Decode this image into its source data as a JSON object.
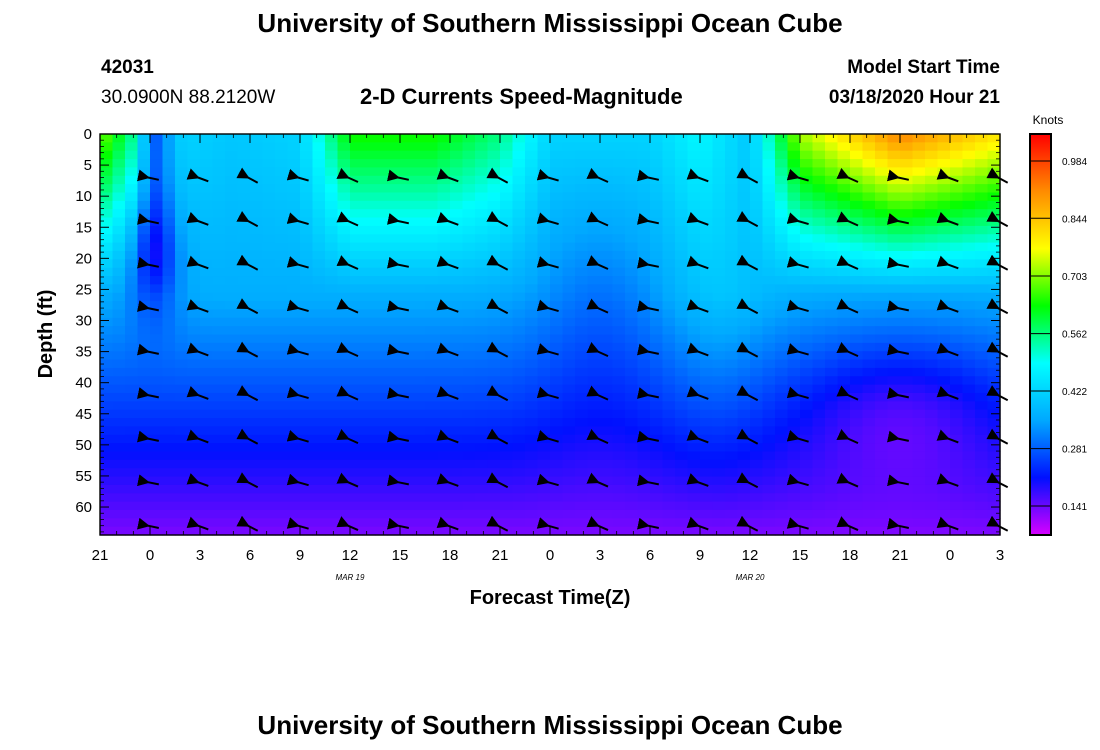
{
  "header": {
    "title": "University of Southern Mississippi Ocean Cube",
    "station_id": "42031",
    "coords": "30.0900N 88.2120W",
    "subtitle": "2-D Currents Speed-Magnitude",
    "model_start_label": "Model Start Time",
    "model_start_value": "03/18/2020 Hour 21"
  },
  "footer": {
    "title": "University of Southern Mississippi Ocean Cube"
  },
  "chart_data": {
    "type": "heatmap",
    "title": "2-D Currents Speed-Magnitude",
    "xlabel": "Forecast Time(Z)",
    "ylabel": "Depth (ft)",
    "x_tick_labels": [
      "21",
      "0",
      "3",
      "6",
      "9",
      "12",
      "15",
      "18",
      "21",
      "0",
      "3",
      "6",
      "9",
      "12",
      "15",
      "18",
      "21",
      "0",
      "3"
    ],
    "x_hours": [
      0,
      3,
      6,
      9,
      12,
      15,
      18,
      21,
      24,
      27,
      30,
      33,
      36,
      39,
      42,
      45,
      48,
      51,
      54
    ],
    "xlim": [
      0,
      54
    ],
    "date_labels": [
      {
        "label": "MAR 19",
        "hour": 15
      },
      {
        "label": "MAR 20",
        "hour": 39
      }
    ],
    "y_ticks": [
      0,
      5,
      10,
      15,
      20,
      25,
      30,
      35,
      40,
      45,
      50,
      55,
      60
    ],
    "ylim": [
      0,
      64.5
    ],
    "colorbar": {
      "unit_label": "Knots",
      "tick_labels": [
        "0.984",
        "0.844",
        "0.703",
        "0.562",
        "0.422",
        "0.281",
        "0.141"
      ],
      "tick_values": [
        0.984,
        0.844,
        0.703,
        0.562,
        0.422,
        0.281,
        0.141
      ],
      "range": [
        0.07,
        1.05
      ]
    },
    "arrow_hours": [
      3,
      6,
      9,
      12,
      15,
      18,
      21,
      24,
      27,
      30,
      33,
      36,
      39,
      42,
      45,
      48,
      51,
      54
    ],
    "arrow_depths": [
      7,
      14,
      21,
      28,
      35,
      42,
      49,
      56,
      63
    ],
    "arrow_direction": "west-northwest"
  },
  "colors": {
    "palette": [
      "#d800ff",
      "#0010ff",
      "#00a8ff",
      "#00ffff",
      "#00ff00",
      "#ffff00",
      "#ff8c00",
      "#ff0000"
    ]
  }
}
